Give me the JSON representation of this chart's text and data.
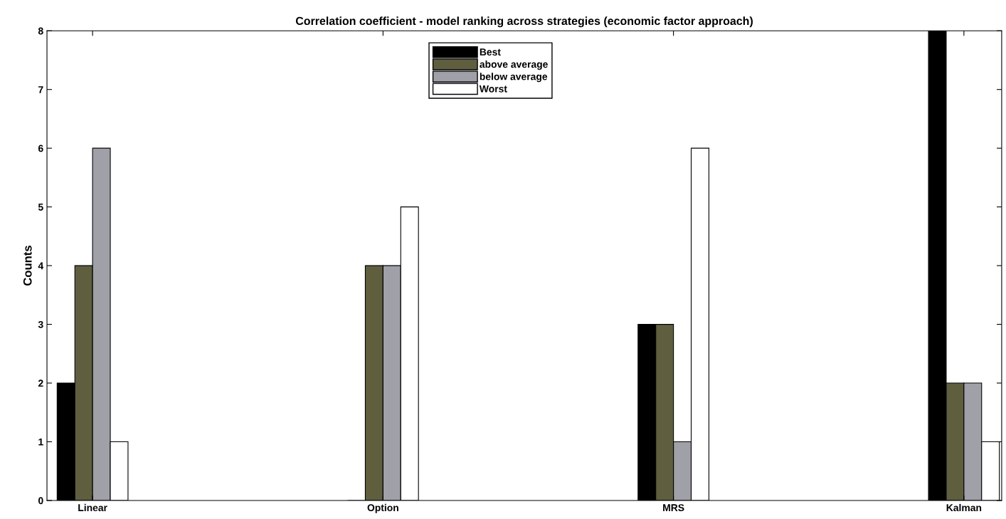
{
  "chart_data": {
    "type": "bar",
    "title": "Correlation coefficient - model ranking across strategies (economic factor approach)",
    "ylabel": "Counts",
    "categories": [
      "Linear",
      "Option",
      "MRS",
      "Kalman"
    ],
    "series": [
      {
        "name": "Best",
        "color": "#000000",
        "values": [
          2,
          0,
          3,
          8
        ]
      },
      {
        "name": "above average",
        "color": "#5f5f40",
        "values": [
          4,
          4,
          3,
          2
        ]
      },
      {
        "name": "below average",
        "color": "#a0a0a8",
        "values": [
          6,
          4,
          1,
          2
        ]
      },
      {
        "name": "Worst",
        "color": "#ffffff",
        "values": [
          1,
          5,
          6,
          1
        ]
      }
    ],
    "ylim": [
      0,
      8
    ],
    "yticks": [
      0,
      1,
      2,
      3,
      4,
      5,
      6,
      7,
      8
    ],
    "grid": false,
    "legend": "top"
  }
}
